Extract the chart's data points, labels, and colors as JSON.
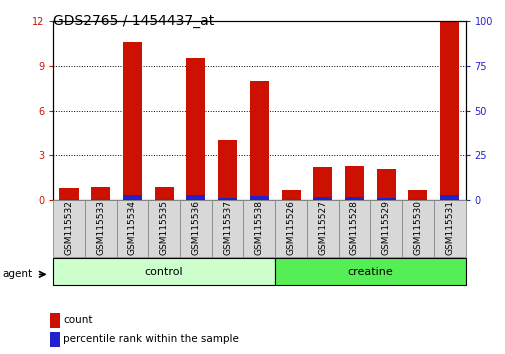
{
  "title": "GDS2765 / 1454437_at",
  "categories": [
    "GSM115532",
    "GSM115533",
    "GSM115534",
    "GSM115535",
    "GSM115536",
    "GSM115537",
    "GSM115538",
    "GSM115526",
    "GSM115527",
    "GSM115528",
    "GSM115529",
    "GSM115530",
    "GSM115531"
  ],
  "count_values": [
    0.8,
    0.85,
    10.6,
    0.85,
    9.5,
    4.0,
    8.0,
    0.7,
    2.2,
    2.25,
    2.1,
    0.7,
    12.0
  ],
  "percentile_values": [
    0.05,
    0.05,
    2.7,
    0.1,
    2.6,
    1.1,
    2.3,
    0.05,
    1.5,
    1.5,
    1.3,
    0.05,
    2.85
  ],
  "bar_width": 0.6,
  "ylim_left": [
    0,
    12
  ],
  "ylim_right": [
    0,
    100
  ],
  "yticks_left": [
    0,
    3,
    6,
    9,
    12
  ],
  "yticks_right": [
    0,
    25,
    50,
    75,
    100
  ],
  "count_color": "#cc1100",
  "percentile_color": "#2222cc",
  "control_color": "#ccffcc",
  "creatine_color": "#55ee55",
  "group_label_control": "control",
  "group_label_creatine": "creatine",
  "agent_label": "agent",
  "legend_count": "count",
  "legend_percentile": "percentile rank within the sample",
  "left_tick_color": "#cc1100",
  "right_tick_color": "#2222cc",
  "title_fontsize": 10,
  "tick_fontsize": 7,
  "label_fontsize": 6.5,
  "group_fontsize": 8,
  "legend_fontsize": 7.5,
  "figsize": [
    5.06,
    3.54
  ],
  "dpi": 100
}
